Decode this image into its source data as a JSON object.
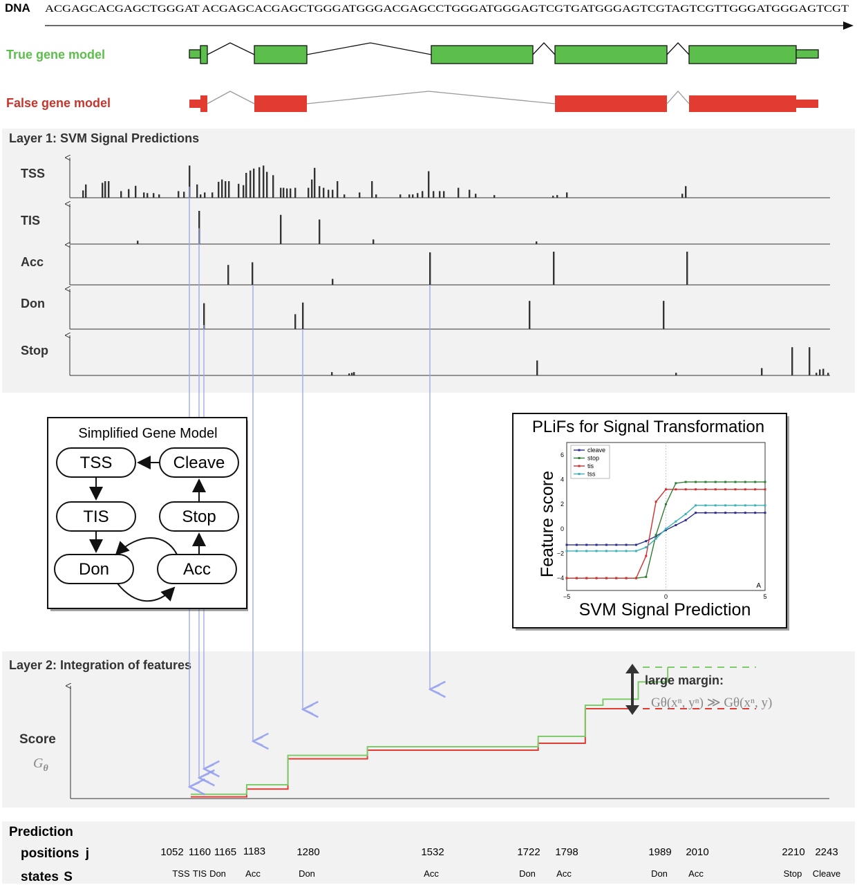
{
  "dna": {
    "label": "DNA",
    "sequence": "ACGAGCACGAGCTGGGAT ACGAGCACGAGCTGGGATGGGACGAGCCTGGGATGGGAGTCGTGATGGGAGTCGTAGTCGTTGGGATGGGAGTCGT"
  },
  "gene_models": {
    "true_label": "True gene model",
    "false_label": "False gene model",
    "true_color": "#5cbf4b",
    "false_color": "#e23b31"
  },
  "layer1": {
    "title": "Layer 1: SVM Signal Predictions",
    "tracks": [
      {
        "label": "TSS",
        "bars": [
          [
            120,
            0.22
          ],
          [
            124,
            0.4
          ],
          [
            148,
            0.45
          ],
          [
            152,
            0.5
          ],
          [
            157,
            0.5
          ],
          [
            175,
            0.2
          ],
          [
            186,
            0.26
          ],
          [
            196,
            0.36
          ],
          [
            208,
            0.16
          ],
          [
            213,
            0.14
          ],
          [
            222,
            0.14
          ],
          [
            230,
            0.1
          ],
          [
            258,
            0.2
          ],
          [
            266,
            0.18
          ],
          [
            274,
            0.97
          ],
          [
            285,
            0.4
          ],
          [
            290,
            0.1
          ],
          [
            296,
            0.16
          ],
          [
            307,
            0.16
          ],
          [
            316,
            0.48
          ],
          [
            321,
            0.55
          ],
          [
            326,
            0.5
          ],
          [
            331,
            0.5
          ],
          [
            345,
            0.42
          ],
          [
            352,
            0.38
          ],
          [
            356,
            0.75
          ],
          [
            362,
            0.82
          ],
          [
            367,
            0.88
          ],
          [
            375,
            0.92
          ],
          [
            381,
            0.97
          ],
          [
            386,
            0.78
          ],
          [
            395,
            0.68
          ],
          [
            406,
            0.3
          ],
          [
            410,
            0.3
          ],
          [
            415,
            0.28
          ],
          [
            420,
            0.28
          ],
          [
            427,
            0.3
          ],
          [
            446,
            0.3
          ],
          [
            451,
            0.55
          ],
          [
            455,
            0.9
          ],
          [
            462,
            0.35
          ],
          [
            468,
            0.3
          ],
          [
            475,
            0.24
          ],
          [
            481,
            0.24
          ],
          [
            488,
            0.5
          ],
          [
            498,
            0.1
          ],
          [
            520,
            0.16
          ],
          [
            538,
            0.5
          ],
          [
            544,
            0.1
          ],
          [
            579,
            0.1
          ],
          [
            592,
            0.1
          ],
          [
            597,
            0.1
          ],
          [
            604,
            0.14
          ],
          [
            611,
            0.2
          ],
          [
            620,
            0.8
          ],
          [
            627,
            0.2
          ],
          [
            636,
            0.2
          ],
          [
            642,
            0.2
          ],
          [
            663,
            0.3
          ],
          [
            679,
            0.24
          ],
          [
            688,
            0.12
          ],
          [
            715,
            0.08
          ],
          [
            800,
            0.06
          ],
          [
            806,
            0.08
          ],
          [
            820,
            0.16
          ],
          [
            987,
            0.12
          ],
          [
            992,
            0.35
          ]
        ]
      },
      {
        "label": "TIS",
        "bars": [
          [
            199,
            0.1
          ],
          [
            288,
            1.0
          ],
          [
            406,
            0.88
          ],
          [
            462,
            0.74
          ],
          [
            540,
            0.14
          ],
          [
            776,
            0.08
          ]
        ]
      },
      {
        "label": "Acc",
        "bars": [
          [
            330,
            0.6
          ],
          [
            365,
            0.68
          ],
          [
            481,
            0.18
          ],
          [
            622,
            0.98
          ],
          [
            801,
            1.0
          ],
          [
            994,
            1.0
          ]
        ]
      },
      {
        "label": "Don",
        "bars": [
          [
            295,
            0.78
          ],
          [
            427,
            0.45
          ],
          [
            438,
            0.8
          ],
          [
            766,
            0.85
          ],
          [
            960,
            0.85
          ]
        ]
      },
      {
        "label": "Stop",
        "bars": [
          [
            480,
            0.1
          ],
          [
            505,
            0.06
          ],
          [
            509,
            0.08
          ],
          [
            512,
            0.1
          ],
          [
            777,
            0.45
          ],
          [
            978,
            0.08
          ],
          [
            1102,
            0.22
          ],
          [
            1146,
            0.85
          ],
          [
            1171,
            0.85
          ],
          [
            1181,
            0.08
          ],
          [
            1186,
            0.18
          ],
          [
            1191,
            0.2
          ],
          [
            1198,
            0.08
          ]
        ]
      }
    ]
  },
  "gene_model_box": {
    "title": "Simplified Gene Model",
    "states": {
      "tss": "TSS",
      "cleave": "Cleave",
      "tis": "TIS",
      "stop": "Stop",
      "don": "Don",
      "acc": "Acc"
    }
  },
  "plifs": {
    "title": "PLiFs for Signal Transformation",
    "chart_data": {
      "type": "line",
      "xlabel": "SVM Signal Prediction",
      "ylabel": "Feature score",
      "xlim": [
        -5,
        5
      ],
      "ylim": [
        -5,
        7
      ],
      "xticks": [
        -5,
        0,
        5
      ],
      "yticks": [
        -4,
        -2,
        0,
        2,
        4,
        6
      ],
      "corner_label": "A",
      "x": [
        -5,
        -4.5,
        -4,
        -3.5,
        -3,
        -2.5,
        -2,
        -1.5,
        -1,
        -0.5,
        0,
        0.5,
        1,
        1.5,
        2,
        2.5,
        3,
        3.5,
        4,
        4.5,
        5
      ],
      "series": [
        {
          "name": "cleave",
          "color": "#2a2f8f",
          "values": [
            -1.3,
            -1.3,
            -1.3,
            -1.3,
            -1.3,
            -1.3,
            -1.3,
            -1.3,
            -1.0,
            -0.6,
            -0.1,
            0.3,
            0.7,
            1.3,
            1.3,
            1.3,
            1.3,
            1.3,
            1.3,
            1.3,
            1.3
          ]
        },
        {
          "name": "stop",
          "color": "#2e7d32",
          "values": [
            -4,
            -4,
            -4,
            -4,
            -4,
            -4,
            -4,
            -4,
            -3.9,
            -0.5,
            2.0,
            3.7,
            3.8,
            3.8,
            3.8,
            3.8,
            3.8,
            3.8,
            3.8,
            3.8,
            3.8
          ]
        },
        {
          "name": "tis",
          "color": "#d32f2f",
          "values": [
            -4,
            -4,
            -4,
            -4,
            -4,
            -4,
            -4,
            -4,
            -2.2,
            2.2,
            3.2,
            3.2,
            3.2,
            3.2,
            3.2,
            3.2,
            3.2,
            3.2,
            3.2,
            3.2,
            3.2
          ]
        },
        {
          "name": "tss",
          "color": "#3ab0b8",
          "values": [
            -1.8,
            -1.8,
            -1.8,
            -1.8,
            -1.8,
            -1.8,
            -1.8,
            -1.8,
            -1.5,
            -0.8,
            0.0,
            0.6,
            1.2,
            1.9,
            1.9,
            1.9,
            1.9,
            1.9,
            1.9,
            1.9,
            1.9
          ]
        }
      ]
    }
  },
  "layer2": {
    "title": "Layer 2: Integration of features",
    "score_label": "Score",
    "score_symbol": "G",
    "score_symbol_sub": "θ",
    "margin_label": "large margin:",
    "margin_formula": "Gθ(xⁿ, yⁿ) ≫ Gθ(xⁿ, y)",
    "true_step": [
      [
        0.0,
        0.5
      ],
      [
        0.095,
        1.6
      ],
      [
        0.165,
        5.0
      ],
      [
        0.3,
        6.0
      ],
      [
        0.59,
        7.2
      ],
      [
        0.67,
        10.8
      ],
      [
        0.7,
        11.5
      ],
      [
        0.76,
        13.5
      ],
      [
        0.81,
        15.2
      ],
      [
        0.96,
        15.2
      ]
    ],
    "false_step": [
      [
        0.0,
        0.2
      ],
      [
        0.095,
        1.1
      ],
      [
        0.165,
        4.6
      ],
      [
        0.3,
        5.6
      ],
      [
        0.59,
        6.4
      ],
      [
        0.67,
        10.4
      ],
      [
        0.96,
        10.4
      ]
    ]
  },
  "prediction": {
    "title": "Prediction",
    "positions_label": "positions",
    "positions_symbol": "j",
    "states_label": "states",
    "states_symbol": "S",
    "positions": [
      "1052",
      "1160",
      "1165",
      "1183",
      "1280",
      "1532",
      "1722",
      "1798",
      "1989",
      "2010",
      "2210",
      "2243"
    ],
    "states": [
      "TSS",
      "TIS",
      "Don",
      "Acc",
      "Don",
      "Acc",
      "Don",
      "Acc",
      "Don",
      "Acc",
      "Stop",
      "Cleave"
    ]
  },
  "colors": {
    "arrow": "#9aa8f0",
    "panel_bg": "#f2f2f2",
    "bar": "#333333"
  }
}
